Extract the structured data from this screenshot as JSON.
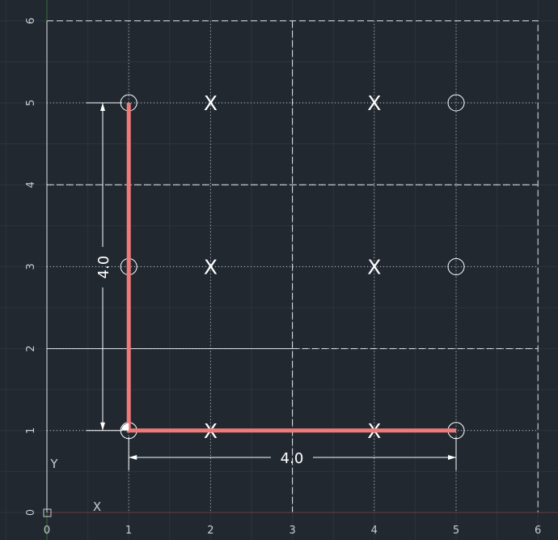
{
  "canvas": {
    "background": "#212830",
    "grid_color": "#3a434f",
    "line_color": "#ffffff",
    "highlight_color": "#f07a7a"
  },
  "axes": {
    "x_labels": [
      "0",
      "1",
      "2",
      "3",
      "4",
      "5",
      "6"
    ],
    "y_labels": [
      "0",
      "1",
      "2",
      "3",
      "4",
      "5",
      "6"
    ]
  },
  "ucs": {
    "x_label": "X",
    "y_label": "Y"
  },
  "polyline": {
    "points": [
      [
        1,
        5
      ],
      [
        1,
        1
      ],
      [
        5,
        1
      ]
    ]
  },
  "circles": [
    {
      "x": 1,
      "y": 5
    },
    {
      "x": 1,
      "y": 3
    },
    {
      "x": 1,
      "y": 1
    },
    {
      "x": 5,
      "y": 5
    },
    {
      "x": 5,
      "y": 3
    },
    {
      "x": 5,
      "y": 1
    }
  ],
  "cross_marks": [
    {
      "x": 2,
      "y": 5,
      "label": "X"
    },
    {
      "x": 4,
      "y": 5,
      "label": "X"
    },
    {
      "x": 2,
      "y": 3,
      "label": "X"
    },
    {
      "x": 4,
      "y": 3,
      "label": "X"
    },
    {
      "x": 2,
      "y": 1,
      "label": "X"
    },
    {
      "x": 4,
      "y": 1,
      "label": "X"
    }
  ],
  "dimensions": {
    "horizontal": {
      "from": [
        1,
        1
      ],
      "to": [
        5,
        1
      ],
      "text": "4.0"
    },
    "vertical": {
      "from": [
        1,
        1
      ],
      "to": [
        1,
        5
      ],
      "text": "4.0"
    }
  }
}
